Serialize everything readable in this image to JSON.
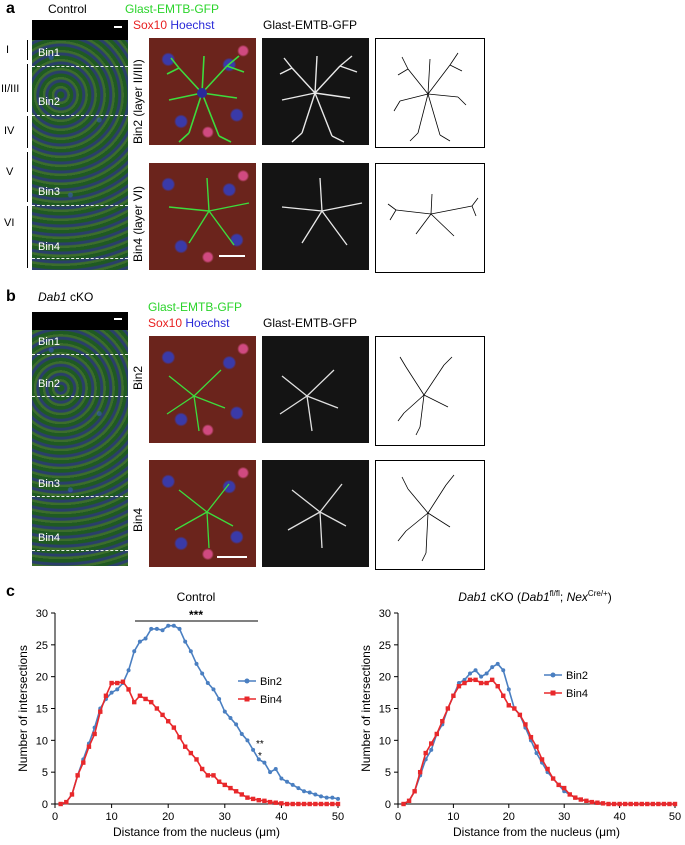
{
  "panel_a": {
    "letter": "a",
    "title": "Control",
    "stain_line1": "Glast-EMTB-GFP",
    "stain_line2_a": "Sox10",
    "stain_line2_b": "Hoechst",
    "gray_title": "Glast-EMTB-GFP",
    "layers": [
      "I",
      "II/III",
      "IV",
      "V",
      "VI"
    ],
    "bins": [
      "Bin1",
      "Bin2",
      "Bin3",
      "Bin4"
    ],
    "row1_label": "Bin2 (layer II/III)",
    "row2_label": "Bin4 (layer VI)"
  },
  "panel_b": {
    "letter": "b",
    "title_italic": "Dab1",
    "title_rest": " cKO",
    "stain_line1": "Glast-EMTB-GFP",
    "stain_line2_a": "Sox10",
    "stain_line2_b": "Hoechst",
    "gray_title": "Glast-EMTB-GFP",
    "bins": [
      "Bin1",
      "Bin2",
      "Bin3",
      "Bin4"
    ],
    "row1_label": "Bin2",
    "row2_label": "Bin4"
  },
  "panel_c": {
    "letter": "c",
    "left_title": "Control",
    "right_title_italic": "Dab1",
    "right_title_mid": " cKO (",
    "right_title_gene1": "Dab1",
    "right_title_sup1": "fl/fl",
    "right_title_sep": "; ",
    "right_title_gene2": "Nex",
    "right_title_sup2": "Cre/+",
    "right_title_end": ")",
    "significance": "***",
    "sig2": "**",
    "sig1": "*"
  },
  "colors": {
    "bin2": "#4a7fc1",
    "bin4": "#e8282b",
    "green_text": "#2bd42b",
    "red_text": "#e82020",
    "blue_text": "#2a2ad8"
  },
  "chart_data": [
    {
      "type": "line",
      "title": "Control",
      "xlabel": "Distance from the nucleus (μm)",
      "ylabel": "Number of intersections",
      "xlim": [
        0,
        50
      ],
      "ylim": [
        0,
        30
      ],
      "xticks": [
        0,
        10,
        20,
        30,
        40,
        50
      ],
      "yticks": [
        0,
        5,
        10,
        15,
        20,
        25,
        30
      ],
      "x": [
        1,
        2,
        3,
        4,
        5,
        6,
        7,
        8,
        9,
        10,
        11,
        12,
        13,
        14,
        15,
        16,
        17,
        18,
        19,
        20,
        21,
        22,
        23,
        24,
        25,
        26,
        27,
        28,
        29,
        30,
        31,
        32,
        33,
        34,
        35,
        36,
        37,
        38,
        39,
        40,
        41,
        42,
        43,
        44,
        45,
        46,
        47,
        48,
        49,
        50
      ],
      "series": [
        {
          "name": "Bin2",
          "values": [
            0,
            0.3,
            1.5,
            4.5,
            7,
            9.5,
            12,
            15,
            16.5,
            17.5,
            18,
            19,
            21,
            24,
            25.5,
            26,
            27.5,
            27.5,
            27.3,
            28,
            28,
            27.5,
            25.5,
            24,
            22,
            20.5,
            19,
            18,
            16.5,
            14.5,
            13.5,
            12.5,
            11,
            10,
            8.5,
            7,
            6.5,
            5,
            5.5,
            4,
            3.5,
            3,
            2.5,
            2,
            1.8,
            1.5,
            1.2,
            1,
            1,
            0.8
          ]
        },
        {
          "name": "Bin4",
          "values": [
            0,
            0.3,
            1.5,
            4.5,
            6.5,
            9,
            11,
            14.5,
            17,
            19,
            19,
            19.2,
            18,
            16,
            17,
            16.5,
            16,
            15,
            14,
            13,
            12,
            10.5,
            9,
            8,
            7,
            5.5,
            4.5,
            4.5,
            3.5,
            3,
            2.5,
            2,
            1.5,
            1,
            0.8,
            0.6,
            0.5,
            0.3,
            0.2,
            0.1,
            0,
            0,
            0,
            0,
            0,
            0,
            0,
            0,
            0,
            0
          ]
        }
      ]
    },
    {
      "type": "line",
      "title": "Dab1 cKO (Dab1fl/fl; NexCre/+)",
      "xlabel": "Distance from the nucleus (μm)",
      "ylabel": "Number of intersections",
      "xlim": [
        0,
        50
      ],
      "ylim": [
        0,
        30
      ],
      "xticks": [
        0,
        10,
        20,
        30,
        40,
        50
      ],
      "yticks": [
        0,
        5,
        10,
        15,
        20,
        25,
        30
      ],
      "x": [
        1,
        2,
        3,
        4,
        5,
        6,
        7,
        8,
        9,
        10,
        11,
        12,
        13,
        14,
        15,
        16,
        17,
        18,
        19,
        20,
        21,
        22,
        23,
        24,
        25,
        26,
        27,
        28,
        29,
        30,
        31,
        32,
        33,
        34,
        35,
        36,
        37,
        38,
        39,
        40,
        41,
        42,
        43,
        44,
        45,
        46,
        47,
        48,
        49,
        50
      ],
      "series": [
        {
          "name": "Bin2",
          "values": [
            0,
            0.5,
            2,
            4.5,
            7,
            8.5,
            11,
            12.5,
            15,
            17,
            19,
            19.5,
            20.5,
            21,
            20,
            20.5,
            21.5,
            22,
            21,
            18,
            15,
            14,
            12,
            10,
            8,
            6.5,
            5,
            4,
            3,
            2,
            1.5,
            1,
            0.7,
            0.5,
            0.3,
            0.2,
            0.1,
            0,
            0,
            0,
            0,
            0,
            0,
            0,
            0,
            0,
            0,
            0,
            0,
            0
          ]
        },
        {
          "name": "Bin4",
          "values": [
            0,
            0.5,
            2,
            5,
            8,
            9.5,
            11,
            13,
            15,
            17,
            18.5,
            19,
            19.5,
            19.5,
            19,
            19,
            19.5,
            18.5,
            17,
            15.5,
            15,
            14,
            12.5,
            10.5,
            9,
            7,
            5.5,
            4,
            3,
            2.5,
            1.5,
            1,
            0.7,
            0.5,
            0.3,
            0.2,
            0.1,
            0,
            0,
            0,
            0,
            0,
            0,
            0,
            0,
            0,
            0,
            0,
            0,
            0
          ]
        }
      ]
    }
  ]
}
